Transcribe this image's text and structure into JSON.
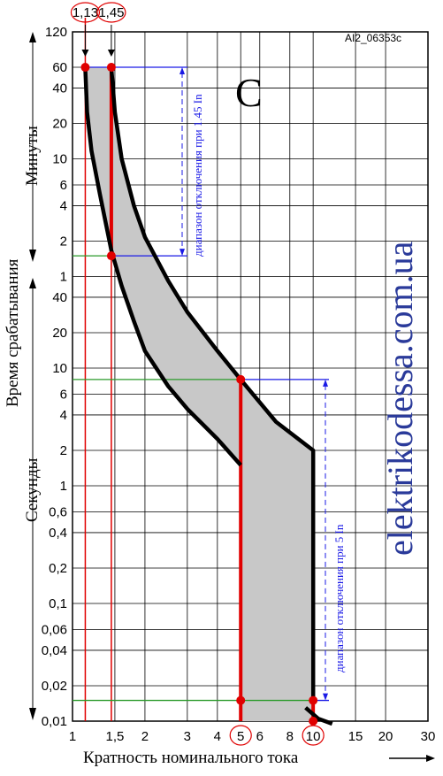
{
  "chart_data": {
    "type": "area",
    "code": "AI2_06353c",
    "curve_letter": "C",
    "watermark": "elektrikodessa.com.ua",
    "xlabel": "Кратность номинального тока",
    "ylabel": "Время срабатывания",
    "y_minutes_label": "Минуты",
    "y_seconds_label": "Секунды",
    "x_scale": "log",
    "x_ticks": [
      {
        "v": 1,
        "label": "1"
      },
      {
        "v": 1.5,
        "label": "1,5"
      },
      {
        "v": 2,
        "label": "2"
      },
      {
        "v": 3,
        "label": "3"
      },
      {
        "v": 4,
        "label": "4"
      },
      {
        "v": 5,
        "label": "5",
        "circled": true
      },
      {
        "v": 6,
        "label": "6"
      },
      {
        "v": 8,
        "label": "8"
      },
      {
        "v": 10,
        "label": "10",
        "circled": true
      },
      {
        "v": 15,
        "label": "15"
      },
      {
        "v": 20,
        "label": "20"
      },
      {
        "v": 30,
        "label": "30"
      }
    ],
    "top_markers": [
      {
        "v": 1.13,
        "label": "1,13"
      },
      {
        "v": 1.45,
        "label": "1,45"
      }
    ],
    "y_minutes_ticks": [
      "120",
      "60",
      "40",
      "20",
      "10",
      "6",
      "4",
      "2",
      "1"
    ],
    "y_seconds_ticks": [
      "40",
      "20",
      "10",
      "6",
      "4",
      "2",
      "1",
      "0,6",
      "0,4",
      "0,2",
      "0,1",
      "0,06",
      "0,04",
      "0,02",
      "0,01"
    ],
    "y_scale": "log",
    "y_range_seconds": [
      0.01,
      7200
    ],
    "lower_curve": [
      {
        "x": 1.13,
        "t": 3600
      },
      {
        "x": 1.15,
        "t": 1500
      },
      {
        "x": 1.2,
        "t": 700
      },
      {
        "x": 1.3,
        "t": 300
      },
      {
        "x": 1.45,
        "t": 100
      },
      {
        "x": 1.6,
        "t": 50
      },
      {
        "x": 1.8,
        "t": 25
      },
      {
        "x": 2,
        "t": 14
      },
      {
        "x": 2.5,
        "t": 7
      },
      {
        "x": 3,
        "t": 4.5
      },
      {
        "x": 4,
        "t": 2.5
      },
      {
        "x": 5,
        "t": 1.5
      },
      {
        "x": 5,
        "t": 0.01
      }
    ],
    "upper_curve": [
      {
        "x": 1.45,
        "t": 3600
      },
      {
        "x": 1.5,
        "t": 1500
      },
      {
        "x": 1.6,
        "t": 600
      },
      {
        "x": 1.8,
        "t": 240
      },
      {
        "x": 2,
        "t": 130
      },
      {
        "x": 2.5,
        "t": 55
      },
      {
        "x": 3,
        "t": 30
      },
      {
        "x": 4,
        "t": 14
      },
      {
        "x": 5,
        "t": 8
      },
      {
        "x": 7,
        "t": 3.5
      },
      {
        "x": 10,
        "t": 2
      },
      {
        "x": 10,
        "t": 0.015
      }
    ],
    "tail_curve": [
      {
        "x": 9.3,
        "t": 0.013
      },
      {
        "x": 10.5,
        "t": 0.0105
      },
      {
        "x": 12,
        "t": 0.0095
      }
    ],
    "points": [
      {
        "x": 1.13,
        "t": 3600
      },
      {
        "x": 1.45,
        "t": 3600
      },
      {
        "x": 1.45,
        "t": 90
      },
      {
        "x": 5,
        "t": 8
      },
      {
        "x": 5,
        "t": 0.015
      },
      {
        "x": 10,
        "t": 0.015
      },
      {
        "x": 10,
        "t": 0.01
      }
    ],
    "annotations": [
      {
        "text": "диапазон отключения при 1.45 In",
        "from_t": 3600,
        "to_t": 90
      },
      {
        "text": "диапазон отключения при 5 In",
        "from_t": 8,
        "to_t": 0.015
      }
    ],
    "colors": {
      "band": "#c8c8c8",
      "curve": "#000000",
      "red": "#e00000",
      "blue": "#1a1ae6",
      "green": "#2a9a2a"
    }
  }
}
